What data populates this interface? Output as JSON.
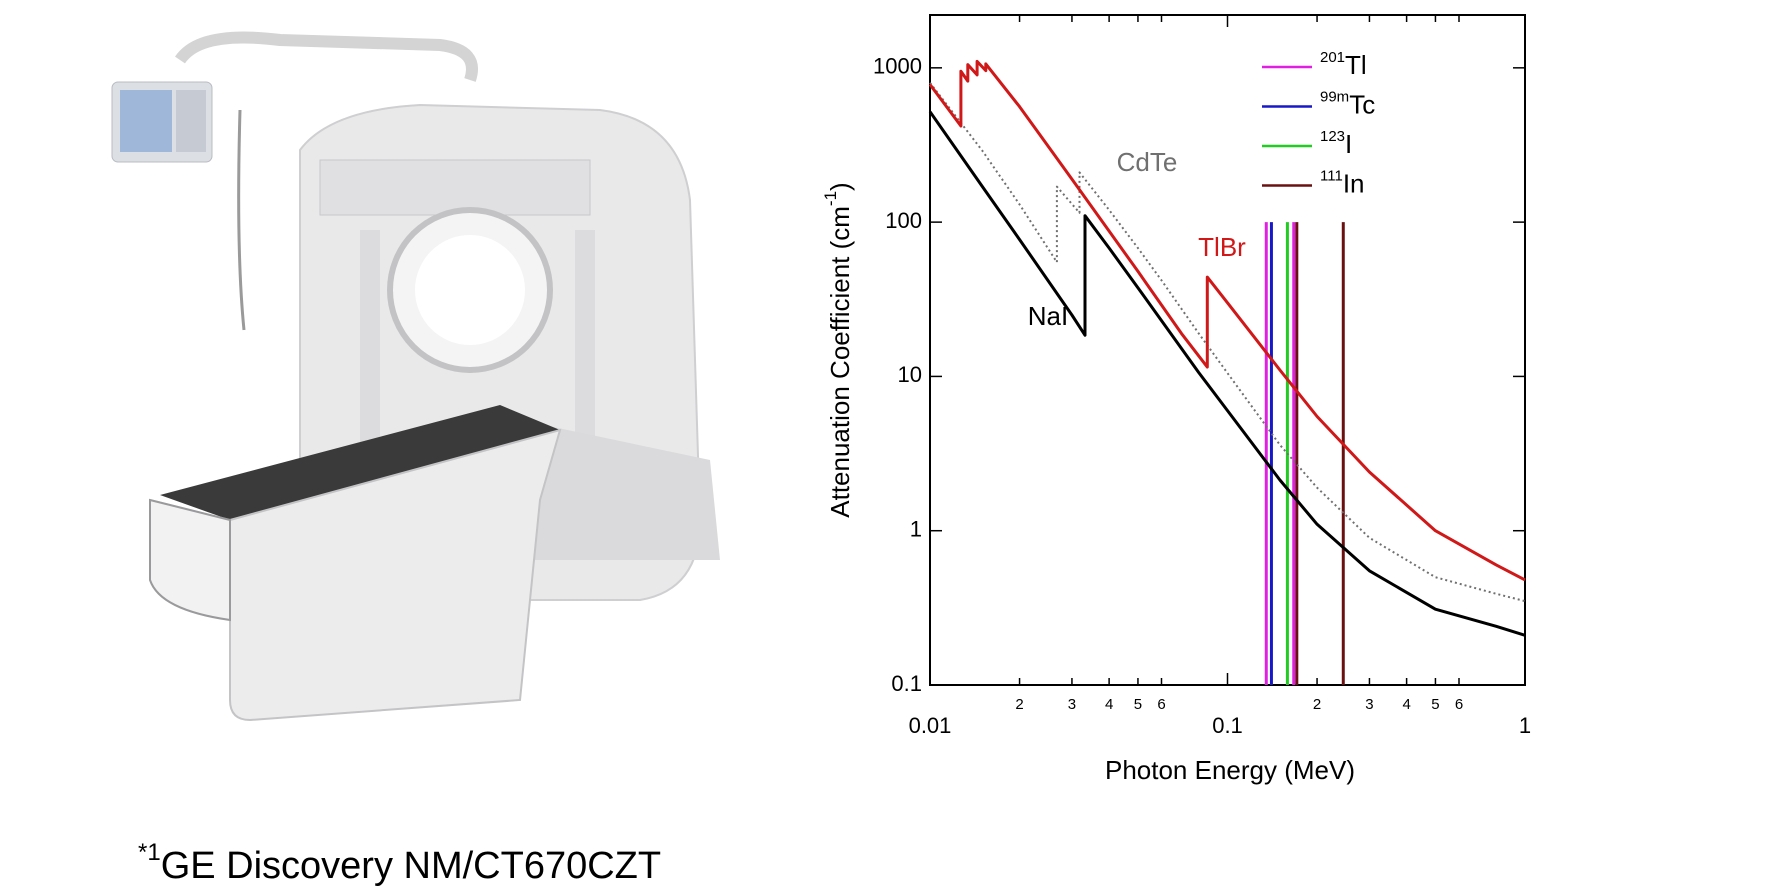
{
  "caption": {
    "mark": "*1",
    "text": "GE Discovery NM/CT670CZT"
  },
  "chart_data": {
    "type": "line",
    "xscale": "log",
    "yscale": "log",
    "xlabel": "Photon Energy (MeV)",
    "ylabel": {
      "text": "Attenuation Coefficient (cm",
      "sup": "-1",
      "end": ")"
    },
    "xlim": [
      0.01,
      1
    ],
    "ylim": [
      0.1,
      2200
    ],
    "xticks": [
      0.01,
      {
        "value": 0.02,
        "label": "2"
      },
      {
        "value": 0.03,
        "label": "3"
      },
      {
        "value": 0.04,
        "label": "4"
      },
      {
        "value": 0.05,
        "label": "5"
      },
      {
        "value": 0.06,
        "label": "6"
      },
      0.1,
      {
        "value": 0.2,
        "label": "2"
      },
      {
        "value": 0.3,
        "label": "3"
      },
      {
        "value": 0.4,
        "label": "4"
      },
      {
        "value": 0.5,
        "label": "5"
      },
      {
        "value": 0.6,
        "label": "6"
      },
      1
    ],
    "yticks": [
      0.1,
      1,
      10,
      100,
      1000
    ],
    "series": [
      {
        "name": "NaI",
        "color": "#000000",
        "style": "solid",
        "x": [
          0.01,
          0.015,
          0.02,
          0.03,
          0.0332,
          0.0332,
          0.04,
          0.05,
          0.06,
          0.08,
          0.1,
          0.15,
          0.2,
          0.3,
          0.5,
          0.8,
          1
        ],
        "values": [
          520,
          170,
          77,
          25,
          18.5,
          110,
          68,
          37.6,
          23,
          10.6,
          6.0,
          2.13,
          1.1,
          0.55,
          0.31,
          0.24,
          0.21
        ]
      },
      {
        "name": "CdTe",
        "color": "#707070",
        "style": "dotted",
        "x": [
          0.01,
          0.015,
          0.02,
          0.0267,
          0.0267,
          0.0318,
          0.0318,
          0.04,
          0.05,
          0.06,
          0.08,
          0.1,
          0.15,
          0.2,
          0.3,
          0.5,
          0.8,
          1
        ],
        "values": [
          800,
          290,
          130,
          55,
          170,
          115,
          210,
          120,
          68,
          42,
          19,
          10.5,
          3.6,
          1.9,
          0.9,
          0.5,
          0.39,
          0.35
        ]
      },
      {
        "name": "TlBr",
        "color": "#d01818",
        "style": "solid",
        "x": [
          0.01,
          0.0127,
          0.0127,
          0.0134,
          0.0134,
          0.0144,
          0.0144,
          0.0154,
          0.0154,
          0.02,
          0.03,
          0.05,
          0.07,
          0.0855,
          0.0855,
          0.1,
          0.15,
          0.2,
          0.3,
          0.5,
          0.8,
          1
        ],
        "values": [
          780,
          420,
          950,
          820,
          1050,
          900,
          1100,
          960,
          1060,
          560,
          190,
          48,
          19,
          11.5,
          44,
          30,
          11,
          5.5,
          2.4,
          1.0,
          0.6,
          0.48
        ]
      }
    ],
    "line_span": [
      0.1,
      100
    ],
    "lines": [
      {
        "mass": "201",
        "symbol": "Tl",
        "color": "#e020e0",
        "x": [
          0.135,
          0.167
        ]
      },
      {
        "mass": "99m",
        "symbol": "Tc",
        "color": "#1818c8",
        "x": [
          0.1405
        ]
      },
      {
        "mass": "123",
        "symbol": "I",
        "color": "#22cc22",
        "x": [
          0.159
        ]
      },
      {
        "mass": "111",
        "symbol": "In",
        "color": "#6a1010",
        "x": [
          0.171,
          0.245
        ]
      }
    ]
  }
}
